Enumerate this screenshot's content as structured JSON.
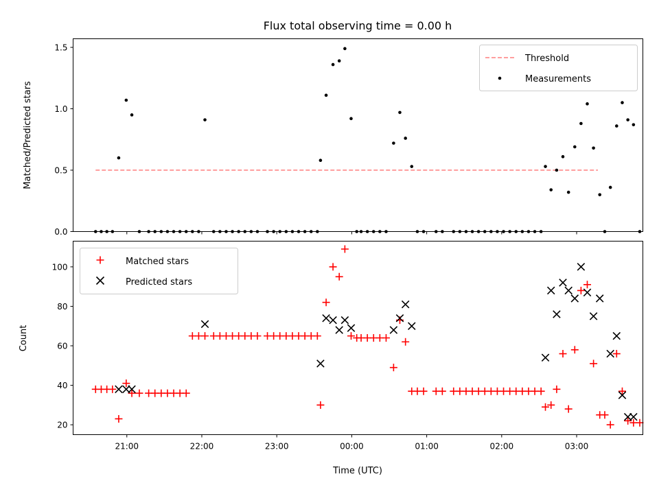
{
  "chart_data": [
    {
      "type": "scatter",
      "panel": "top",
      "title": "Flux total observing time = 0.00 h",
      "ylabel": "Matched/Predicted stars",
      "xlabel": "",
      "ylim": [
        0,
        1.57
      ],
      "yticks": [
        0.0,
        0.5,
        1.0,
        1.5
      ],
      "ytick_labels": [
        "0.0",
        "0.5",
        "1.0",
        "1.5"
      ],
      "legend": "top-right",
      "grid": false,
      "colors": {
        "threshold": "#ff7f7f",
        "measurements": "#000000"
      },
      "series": [
        {
          "name": "Threshold",
          "kind": "dashed-line",
          "x": [
            -25.0,
            377.0
          ],
          "y": [
            0.5,
            0.5
          ]
        },
        {
          "name": "Measurements",
          "kind": "points",
          "x": [
            -25.0,
            -20.5,
            -16.0,
            -11.5,
            -6.5,
            -0.5,
            4.0,
            10.0,
            17.5,
            22.5,
            27.5,
            32.5,
            37.5,
            42.5,
            47.5,
            52.5,
            57.5,
            62.5,
            69.5,
            74.5,
            79.5,
            84.5,
            89.5,
            94.5,
            99.5,
            104.5,
            112.5,
            117.5,
            122.5,
            127.5,
            132.5,
            137.5,
            142.5,
            147.5,
            152.5,
            155.0,
            159.5,
            165.0,
            170.0,
            174.5,
            179.5,
            184.0,
            187.5,
            192.5,
            197.5,
            202.5,
            207.5,
            213.5,
            218.5,
            223.0,
            228.0,
            232.5,
            237.5,
            247.5,
            252.5,
            261.5,
            266.5,
            271.5,
            276.5,
            281.5,
            286.5,
            291.5,
            296.5,
            301.5,
            306.5,
            311.5,
            316.5,
            321.5,
            326.5,
            331.5,
            335.0,
            339.5,
            344.0,
            349.0,
            353.5,
            358.5,
            363.5,
            368.5,
            373.5,
            378.5,
            382.5,
            387.0,
            392.0,
            396.5,
            401.0,
            405.5,
            410.5
          ],
          "y": [
            0,
            0,
            0,
            0,
            0.6,
            1.07,
            0.95,
            0,
            0,
            0,
            0,
            0,
            0,
            0,
            0,
            0,
            0,
            0.91,
            0,
            0,
            0,
            0,
            0,
            0,
            0,
            0,
            0,
            0,
            0,
            0,
            0,
            0,
            0,
            0,
            0,
            0.58,
            1.11,
            1.36,
            1.39,
            1.49,
            0.92,
            0,
            0,
            0,
            0,
            0,
            0,
            0.72,
            0.97,
            0.76,
            0.53,
            0,
            0,
            0,
            0,
            0,
            0,
            0,
            0,
            0,
            0,
            0,
            0,
            0,
            0,
            0,
            0,
            0,
            0,
            0,
            0.53,
            0.34,
            0.5,
            0.61,
            0.32,
            0.69,
            0.88,
            1.04,
            0.68,
            0.3,
            0,
            0.36,
            0.86,
            1.05,
            0.91,
            0.87,
            0
          ]
        }
      ]
    },
    {
      "type": "scatter",
      "panel": "bottom",
      "title": "",
      "ylabel": "Count",
      "xlabel": "Time (UTC)",
      "ylim": [
        15,
        113
      ],
      "yticks": [
        20,
        40,
        60,
        80,
        100
      ],
      "ytick_labels": [
        "20",
        "40",
        "60",
        "80",
        "100"
      ],
      "xlim": [
        -43.0,
        413.0
      ],
      "xtick_minutes": [
        0,
        60,
        120,
        180,
        240,
        300,
        360
      ],
      "xtick_labels": [
        "21:00",
        "22:00",
        "23:00",
        "00:00",
        "01:00",
        "02:00",
        "03:00"
      ],
      "legend": "top-left",
      "grid": false,
      "colors": {
        "matched": "#ff0000",
        "predicted": "#000000"
      },
      "series": [
        {
          "name": "Matched stars",
          "marker": "plus",
          "x": [
            -25.0,
            -20.5,
            -16.0,
            -11.5,
            -6.5,
            -0.5,
            4.0,
            10.0,
            17.5,
            22.5,
            27.5,
            32.5,
            37.5,
            42.5,
            47.5,
            52.5,
            57.5,
            62.5,
            69.5,
            74.5,
            79.5,
            84.5,
            89.5,
            94.5,
            99.5,
            104.5,
            112.5,
            117.5,
            122.5,
            127.5,
            132.5,
            137.5,
            142.5,
            147.5,
            152.5,
            155.0,
            159.5,
            165.0,
            170.0,
            174.5,
            179.5,
            184.0,
            187.5,
            192.5,
            197.5,
            202.5,
            207.5,
            213.5,
            218.5,
            223.0,
            228.0,
            232.5,
            237.5,
            247.5,
            252.5,
            261.5,
            266.5,
            271.5,
            276.5,
            281.5,
            286.5,
            291.5,
            296.5,
            301.5,
            306.5,
            311.5,
            316.5,
            321.5,
            326.5,
            331.5,
            335.0,
            339.5,
            344.0,
            349.0,
            353.5,
            358.5,
            363.5,
            368.5,
            373.5,
            378.5,
            382.5,
            387.0,
            392.0,
            396.5,
            401.0,
            405.5,
            410.5
          ],
          "y": [
            38,
            38,
            38,
            38,
            23,
            41,
            36,
            36,
            36,
            36,
            36,
            36,
            36,
            36,
            36,
            65,
            65,
            65,
            65,
            65,
            65,
            65,
            65,
            65,
            65,
            65,
            65,
            65,
            65,
            65,
            65,
            65,
            65,
            65,
            65,
            30,
            82,
            100,
            95,
            109,
            65,
            64,
            64,
            64,
            64,
            64,
            64,
            49,
            73,
            62,
            37,
            37,
            37,
            37,
            37,
            37,
            37,
            37,
            37,
            37,
            37,
            37,
            37,
            37,
            37,
            37,
            37,
            37,
            37,
            37,
            29,
            30,
            38,
            56,
            28,
            58,
            88,
            91,
            51,
            25,
            25,
            20,
            56,
            37,
            22,
            21,
            21
          ]
        },
        {
          "name": "Predicted stars",
          "marker": "x",
          "x": [
            -6.5,
            -0.5,
            4.0,
            62.5,
            155.0,
            159.5,
            165.0,
            170.0,
            174.5,
            179.5,
            213.5,
            218.5,
            223.0,
            228.0,
            335.0,
            339.5,
            344.0,
            349.0,
            353.5,
            358.5,
            363.5,
            368.5,
            373.5,
            378.5,
            387.0,
            392.0,
            396.5,
            401.0,
            405.5
          ],
          "y": [
            38,
            38,
            38,
            71,
            51,
            74,
            73,
            68,
            73,
            69,
            68,
            74,
            81,
            70,
            54,
            88,
            76,
            92,
            88,
            84,
            100,
            87,
            75,
            84,
            56,
            65,
            35,
            24,
            24
          ]
        }
      ]
    }
  ]
}
